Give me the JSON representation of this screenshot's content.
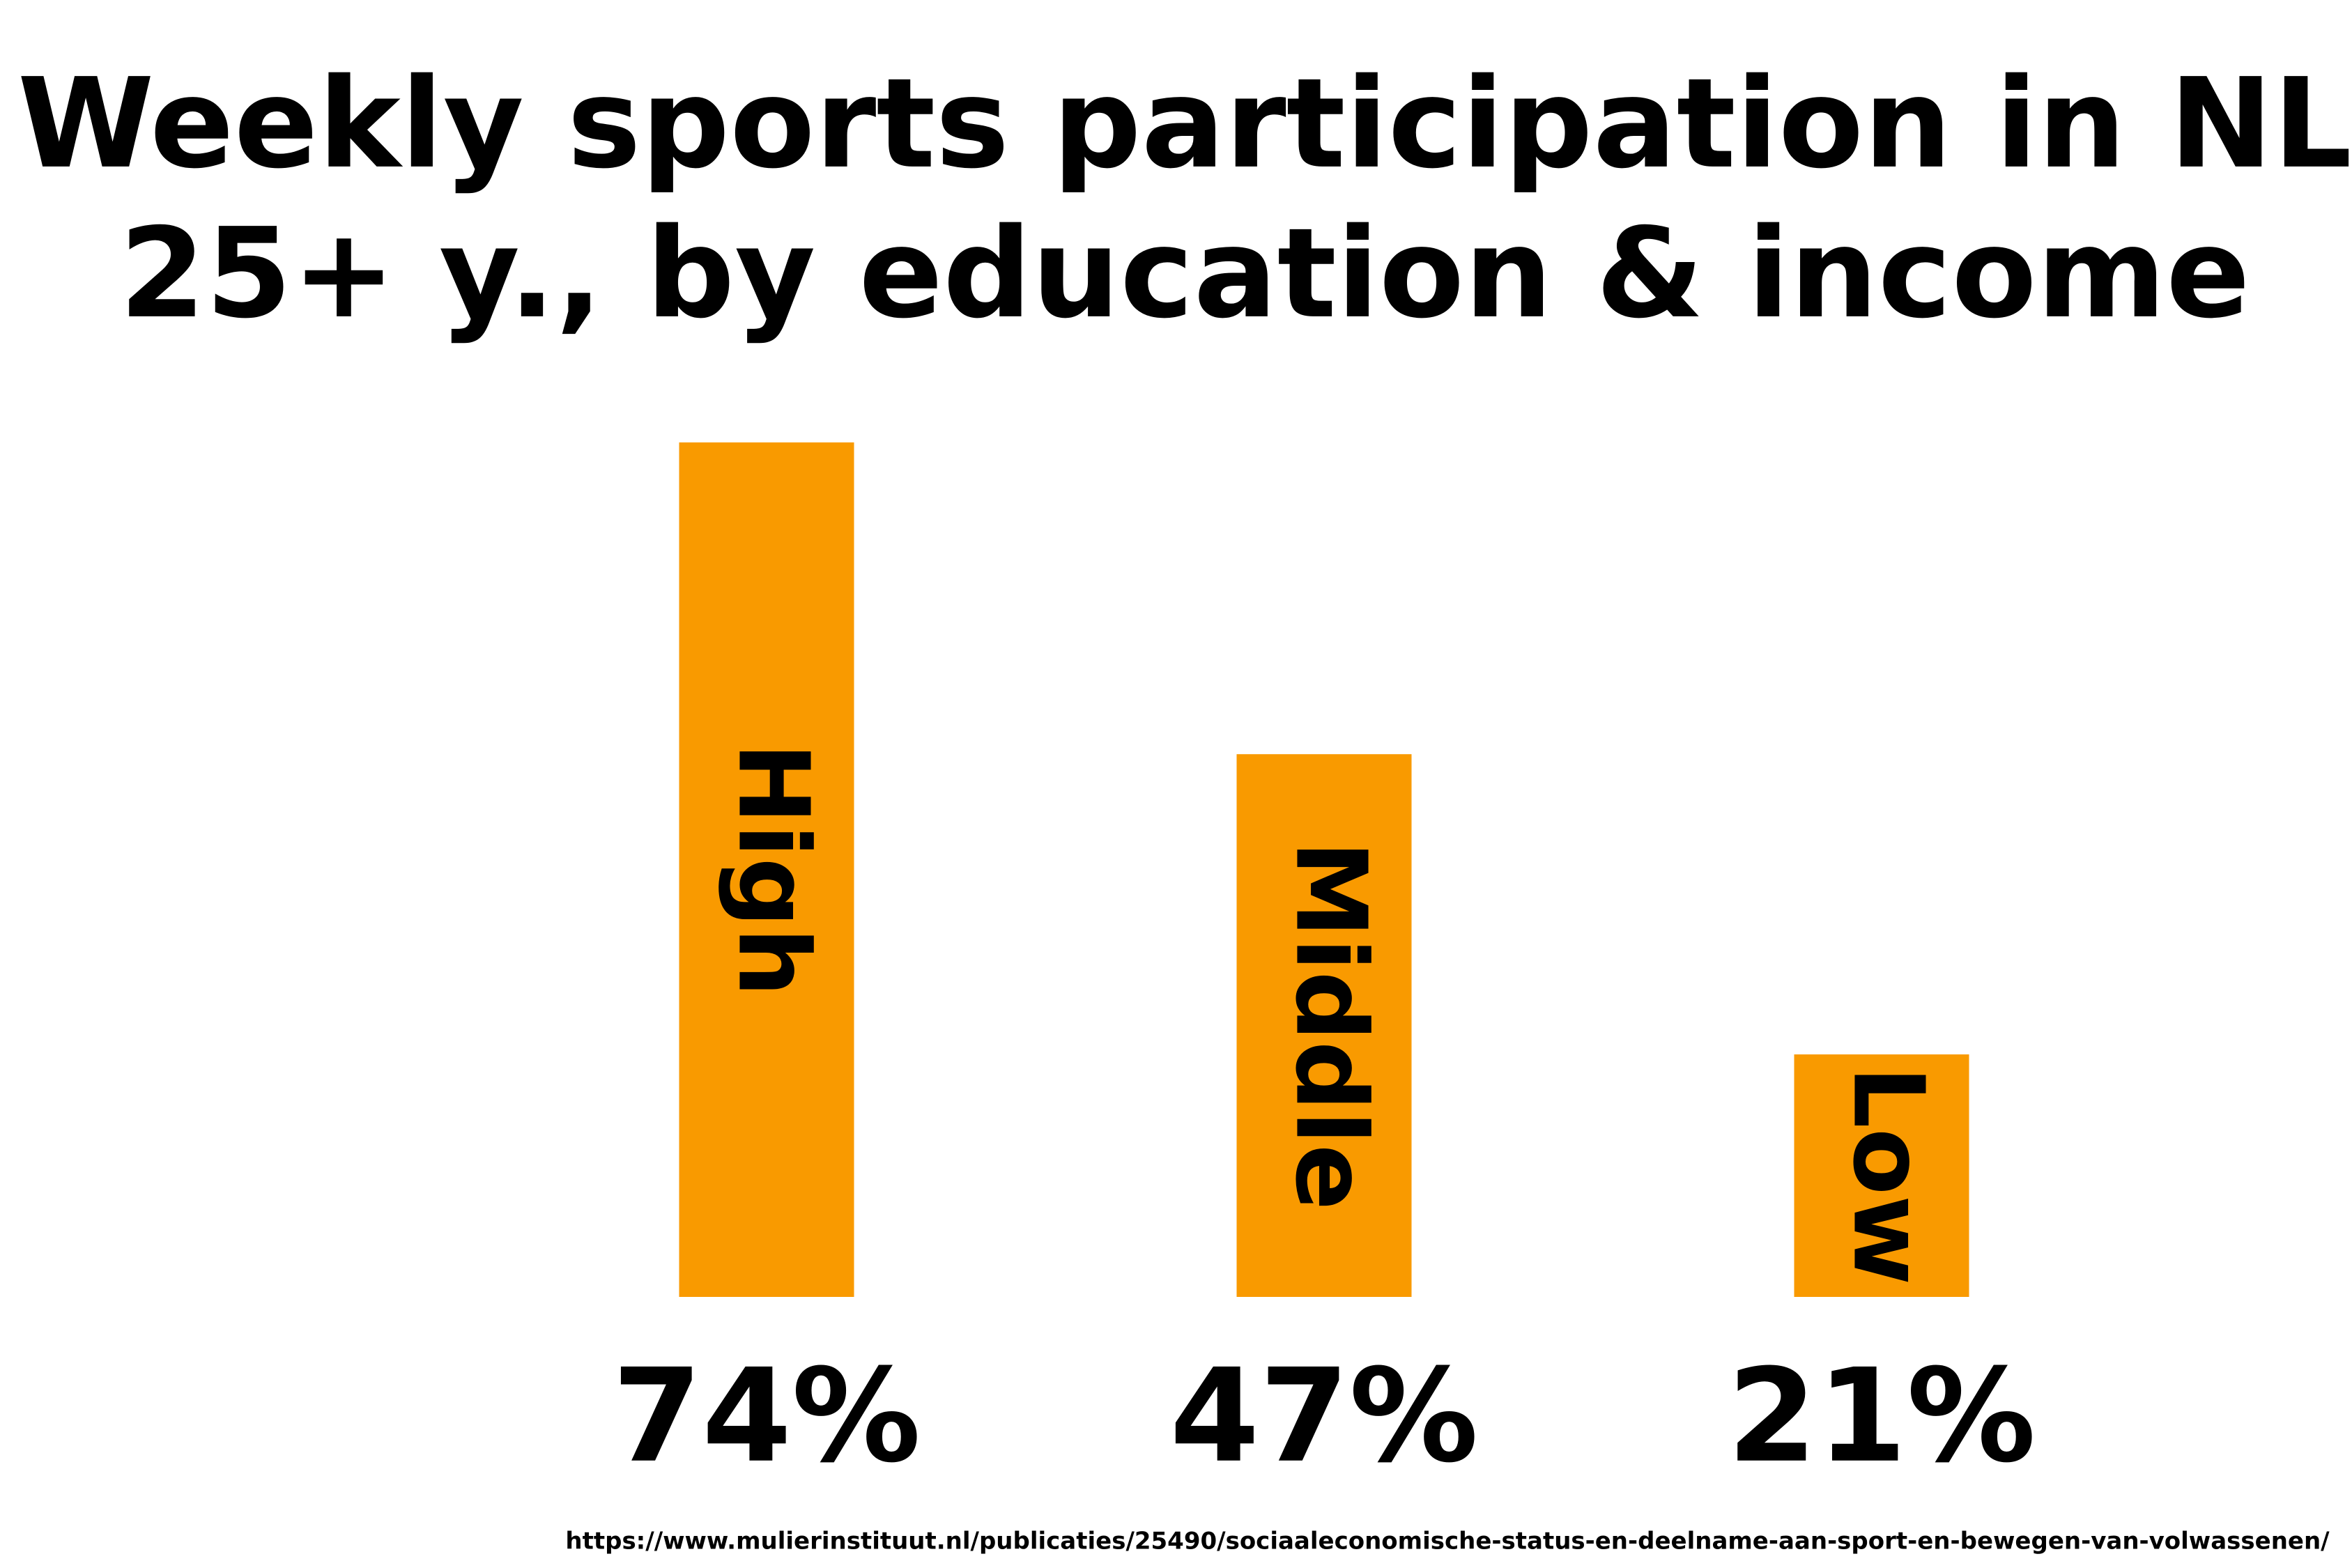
{
  "chart_data": {
    "type": "bar",
    "title": [
      "Weekly sports participation in NL",
      "25+ y., by education & income"
    ],
    "categories": [
      "High",
      "Middle",
      "Low"
    ],
    "values": [
      74,
      47,
      21
    ],
    "value_labels": [
      "74%",
      "47%",
      "21%"
    ],
    "color": "#f99a00",
    "ylim": [
      0,
      100
    ],
    "source": "https://www.mulierinstituut.nl/publicaties/25490/sociaaleconomische-status-en-deelname-aan-sport-en-bewegen-van-volwassenen/"
  }
}
